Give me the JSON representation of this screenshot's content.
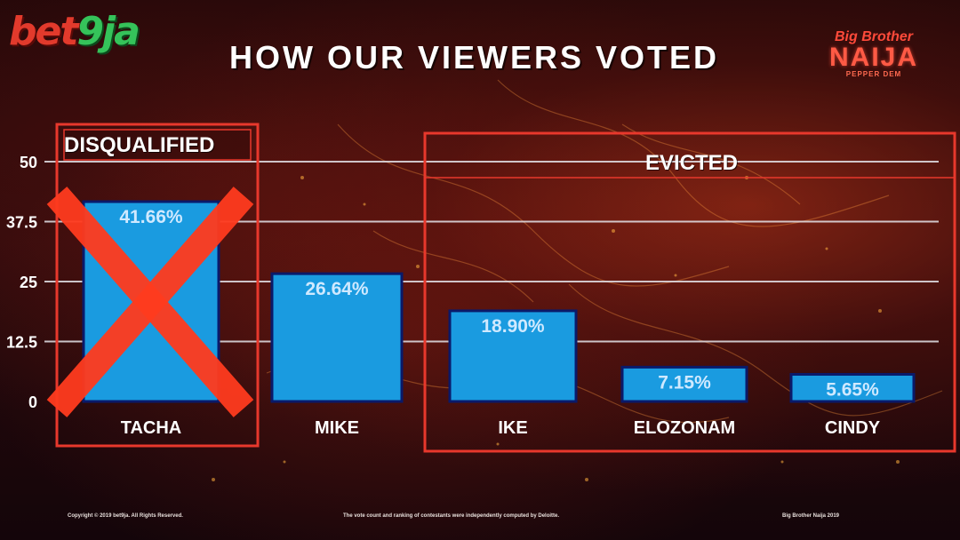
{
  "logo_left": {
    "part1": "bet",
    "part2": "9ja"
  },
  "header": {
    "title": "HOW OUR VIEWERS VOTED"
  },
  "logo_right": {
    "line1": "Big Brother",
    "line2": "NAIJA",
    "line3": "PEPPER DEM"
  },
  "groups": {
    "disqualified_label": "DISQUALIFIED",
    "evicted_label": "EVICTED"
  },
  "footer": {
    "left": "Copyright © 2019 bet9ja. All Rights Reserved.",
    "center": "The vote count and ranking of contestants were independently computed by Deloitte.",
    "right": "Big Brother Naija 2019"
  },
  "colors": {
    "bar": "#1a9be0",
    "bar_border": "#0a1a6a",
    "frame": "#e8382c",
    "cross": "#ff3b1e",
    "grid": "#e4e4ea"
  },
  "chart_data": {
    "type": "bar",
    "title": "HOW OUR VIEWERS VOTED",
    "categories": [
      "TACHA",
      "MIKE",
      "IKE",
      "ELOZONAM",
      "CINDY"
    ],
    "values": [
      41.66,
      26.64,
      18.9,
      7.15,
      5.65
    ],
    "value_labels": [
      "41.66%",
      "26.64%",
      "18.90%",
      "7.15%",
      "5.65%"
    ],
    "ylim": [
      0,
      50
    ],
    "y_ticks": [
      {
        "value": 0,
        "label": "0"
      },
      {
        "value": 12.5,
        "label": "12.5"
      },
      {
        "value": 25,
        "label": "25"
      },
      {
        "value": 37.5,
        "label": "37.5"
      },
      {
        "value": 50,
        "label": "50"
      }
    ],
    "grid": true,
    "disqualified": [
      "TACHA"
    ],
    "evicted": [
      "IKE",
      "ELOZONAM",
      "CINDY"
    ]
  }
}
